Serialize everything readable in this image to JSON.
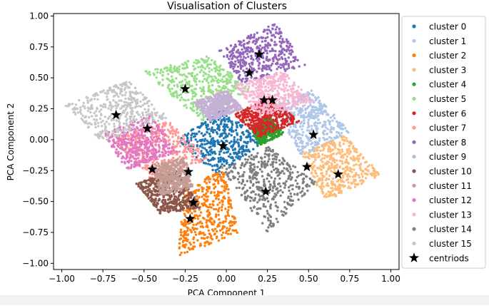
{
  "chart_data": {
    "type": "scatter",
    "title": "Visualisation of Clusters",
    "xlabel": "PCA Component 1",
    "ylabel": "PCA Component 2",
    "xlim": [
      -1.05,
      1.05
    ],
    "ylim": [
      -1.05,
      1.02
    ],
    "xticks": [
      "−1.00",
      "−0.75",
      "−0.50",
      "−0.25",
      "0.00",
      "0.25",
      "0.50",
      "0.75",
      "1.00"
    ],
    "xtick_values": [
      -1.0,
      -0.75,
      -0.5,
      -0.25,
      0.0,
      0.25,
      0.5,
      0.75,
      1.0
    ],
    "yticks": [
      "1.00",
      "0.75",
      "0.50",
      "0.25",
      "0.00",
      "−0.25",
      "−0.50",
      "−0.75",
      "−1.00"
    ],
    "ytick_values": [
      1.0,
      0.75,
      0.5,
      0.25,
      0.0,
      -0.25,
      -0.5,
      -0.75,
      -1.0
    ],
    "grid": false,
    "legend_position": "right, outside plot",
    "series": [
      {
        "name": "cluster 0",
        "color": "#1f77b4",
        "region": [
          [
            -0.3,
            0.0
          ],
          [
            -0.02,
            0.25
          ],
          [
            0.22,
            -0.02
          ],
          [
            -0.05,
            -0.3
          ]
        ]
      },
      {
        "name": "cluster 1",
        "color": "#aec7e8",
        "region": [
          [
            0.3,
            0.28
          ],
          [
            0.52,
            0.4
          ],
          [
            0.76,
            0.05
          ],
          [
            0.45,
            -0.15
          ]
        ]
      },
      {
        "name": "cluster 2",
        "color": "#ff7f0e",
        "region": [
          [
            -0.25,
            -0.42
          ],
          [
            -0.02,
            -0.22
          ],
          [
            0.08,
            -0.75
          ],
          [
            -0.3,
            -0.95
          ]
        ]
      },
      {
        "name": "cluster 3",
        "color": "#ffbb78",
        "region": [
          [
            0.45,
            -0.1
          ],
          [
            0.72,
            0.03
          ],
          [
            0.95,
            -0.28
          ],
          [
            0.6,
            -0.5
          ]
        ]
      },
      {
        "name": "cluster 4",
        "color": "#2ca02c",
        "region": [
          [
            0.15,
            0.1
          ],
          [
            0.25,
            0.2
          ],
          [
            0.35,
            0.05
          ],
          [
            0.2,
            -0.05
          ]
        ]
      },
      {
        "name": "cluster 5",
        "color": "#98df8a",
        "region": [
          [
            -0.5,
            0.55
          ],
          [
            -0.1,
            0.68
          ],
          [
            0.15,
            0.4
          ],
          [
            -0.15,
            0.15
          ]
        ]
      },
      {
        "name": "cluster 6",
        "color": "#d62728",
        "region": [
          [
            0.05,
            0.2
          ],
          [
            0.25,
            0.35
          ],
          [
            0.45,
            0.15
          ],
          [
            0.2,
            0.02
          ]
        ]
      },
      {
        "name": "cluster 7",
        "color": "#ff9896",
        "region": [
          [
            -0.7,
            0.02
          ],
          [
            -0.35,
            0.15
          ],
          [
            -0.1,
            -0.15
          ],
          [
            -0.45,
            -0.35
          ]
        ]
      },
      {
        "name": "cluster 8",
        "color": "#9467bd",
        "region": [
          [
            -0.05,
            0.72
          ],
          [
            0.3,
            0.95
          ],
          [
            0.48,
            0.6
          ],
          [
            0.1,
            0.45
          ]
        ]
      },
      {
        "name": "cluster 9",
        "color": "#c5b0d5",
        "region": [
          [
            -0.2,
            0.3
          ],
          [
            0.0,
            0.4
          ],
          [
            0.1,
            0.25
          ],
          [
            -0.1,
            0.15
          ]
        ]
      },
      {
        "name": "cluster 10",
        "color": "#8c564b",
        "region": [
          [
            -0.55,
            -0.35
          ],
          [
            -0.3,
            -0.25
          ],
          [
            -0.15,
            -0.55
          ],
          [
            -0.4,
            -0.6
          ]
        ]
      },
      {
        "name": "cluster 11",
        "color": "#c49c94",
        "region": [
          [
            -0.45,
            -0.2
          ],
          [
            -0.25,
            -0.15
          ],
          [
            -0.2,
            -0.4
          ],
          [
            -0.4,
            -0.45
          ]
        ]
      },
      {
        "name": "cluster 12",
        "color": "#e377c2",
        "region": [
          [
            -0.75,
            0.05
          ],
          [
            -0.45,
            0.2
          ],
          [
            -0.3,
            -0.1
          ],
          [
            -0.6,
            -0.25
          ]
        ]
      },
      {
        "name": "cluster 13",
        "color": "#f7b6d2",
        "region": [
          [
            0.05,
            0.45
          ],
          [
            0.35,
            0.55
          ],
          [
            0.55,
            0.3
          ],
          [
            0.2,
            0.18
          ]
        ]
      },
      {
        "name": "cluster 14",
        "color": "#7f7f7f",
        "region": [
          [
            -0.02,
            -0.25
          ],
          [
            0.25,
            -0.05
          ],
          [
            0.55,
            -0.35
          ],
          [
            0.25,
            -0.75
          ]
        ]
      },
      {
        "name": "cluster 15",
        "color": "#c7c7c7",
        "region": [
          [
            -0.98,
            0.28
          ],
          [
            -0.6,
            0.48
          ],
          [
            -0.35,
            0.18
          ],
          [
            -0.75,
            -0.02
          ]
        ]
      }
    ],
    "centroids": {
      "name": "centriods",
      "color": "#000000",
      "points": [
        {
          "x": -0.02,
          "y": -0.05
        },
        {
          "x": 0.53,
          "y": 0.04
        },
        {
          "x": -0.2,
          "y": -0.51
        },
        {
          "x": 0.68,
          "y": -0.28
        },
        {
          "x": 0.28,
          "y": 0.32
        },
        {
          "x": -0.25,
          "y": 0.41
        },
        {
          "x": 0.23,
          "y": 0.32
        },
        {
          "x": -0.45,
          "y": -0.24
        },
        {
          "x": 0.2,
          "y": 0.69
        },
        {
          "x": 0.14,
          "y": 0.54
        },
        {
          "x": -0.22,
          "y": -0.64
        },
        {
          "x": -0.23,
          "y": -0.26
        },
        {
          "x": -0.48,
          "y": 0.09
        },
        {
          "x": 0.49,
          "y": -0.22
        },
        {
          "x": 0.24,
          "y": -0.42
        },
        {
          "x": -0.67,
          "y": 0.2
        }
      ]
    }
  }
}
